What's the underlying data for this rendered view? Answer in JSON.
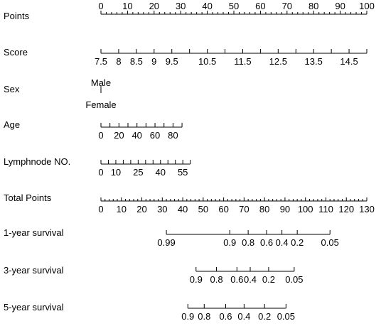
{
  "chart_data": {
    "type": "nomogram",
    "axes": [
      {
        "name": "Points",
        "scale": [
          0,
          100
        ],
        "ticks": [
          0,
          10,
          20,
          30,
          40,
          50,
          60,
          70,
          80,
          90,
          100
        ],
        "tick_labels": [
          "0",
          "10",
          "20",
          "30",
          "40",
          "50",
          "60",
          "70",
          "80",
          "90",
          "100"
        ],
        "minor_step": 2,
        "labels_above": true
      },
      {
        "name": "Score",
        "points_range": [
          0,
          100
        ],
        "value_range": [
          7.5,
          15
        ],
        "ticks": [
          7.5,
          8,
          8.5,
          9,
          9.5,
          10,
          10.5,
          11,
          11.5,
          12,
          12.5,
          13,
          13.5,
          14,
          14.5,
          15
        ],
        "tick_labels": [
          "7.5",
          "8",
          "8.5",
          "9",
          "9.5",
          "",
          "10.5",
          "",
          "11.5",
          "",
          "12.5",
          "",
          "13.5",
          "",
          "14.5",
          ""
        ]
      },
      {
        "name": "Sex",
        "categories": [
          {
            "label": "Male",
            "points": 0
          },
          {
            "label": "Female",
            "points": 0
          }
        ]
      },
      {
        "name": "Age",
        "points_range": [
          0,
          30.5
        ],
        "value_range": [
          0,
          90
        ],
        "ticks": [
          0,
          10,
          20,
          30,
          40,
          50,
          60,
          70,
          80,
          90
        ],
        "tick_labels": [
          "0",
          "",
          "20",
          "",
          "40",
          "",
          "60",
          "",
          "80",
          ""
        ]
      },
      {
        "name": "Lymphnode NO.",
        "points_range": [
          0,
          33.6
        ],
        "value_range": [
          0,
          60
        ],
        "ticks": [
          0,
          5,
          10,
          15,
          20,
          25,
          30,
          35,
          40,
          45,
          50,
          55,
          60
        ],
        "tick_labels": [
          "0",
          "",
          "10",
          "",
          "",
          "25",
          "",
          "",
          "40",
          "",
          "",
          "55",
          ""
        ]
      },
      {
        "name": "Total Points",
        "scale": [
          0,
          130
        ],
        "ticks": [
          0,
          10,
          20,
          30,
          40,
          50,
          60,
          70,
          80,
          90,
          100,
          110,
          120,
          130
        ],
        "tick_labels": [
          "0",
          "10",
          "20",
          "30",
          "40",
          "50",
          "60",
          "70",
          "80",
          "90",
          "100",
          "110",
          "120",
          "130"
        ],
        "minor_step": 2
      },
      {
        "name": "1-year survival",
        "line_range_total_points": [
          32,
          112
        ],
        "ticks": [
          {
            "label": "0.99",
            "total_points": 32
          },
          {
            "label": "0.9",
            "total_points": 63
          },
          {
            "label": "0.8",
            "total_points": 72
          },
          {
            "label": "0.6",
            "total_points": 81
          },
          {
            "label": "0.4",
            "total_points": 88.5
          },
          {
            "label": "0.2",
            "total_points": 96
          },
          {
            "label": "0.05",
            "total_points": 112
          }
        ]
      },
      {
        "name": "3-year survival",
        "line_range_total_points": [
          46.5,
          94.5
        ],
        "ticks": [
          {
            "label": "0.9",
            "total_points": 46.5
          },
          {
            "label": "0.8",
            "total_points": 56.5
          },
          {
            "label": "0.6",
            "total_points": 66.5
          },
          {
            "label": "0.4",
            "total_points": 73
          },
          {
            "label": "0.2",
            "total_points": 82
          },
          {
            "label": "0.05",
            "total_points": 94.5
          }
        ]
      },
      {
        "name": "5-year survival",
        "line_range_total_points": [
          42.5,
          90.5
        ],
        "ticks": [
          {
            "label": "0.9",
            "total_points": 42.5
          },
          {
            "label": "0.8",
            "total_points": 50.5
          },
          {
            "label": "0.6",
            "total_points": 61
          },
          {
            "label": "0.4",
            "total_points": 70
          },
          {
            "label": "0.2",
            "total_points": 80
          },
          {
            "label": "0.05",
            "total_points": 90.5
          }
        ]
      }
    ]
  }
}
